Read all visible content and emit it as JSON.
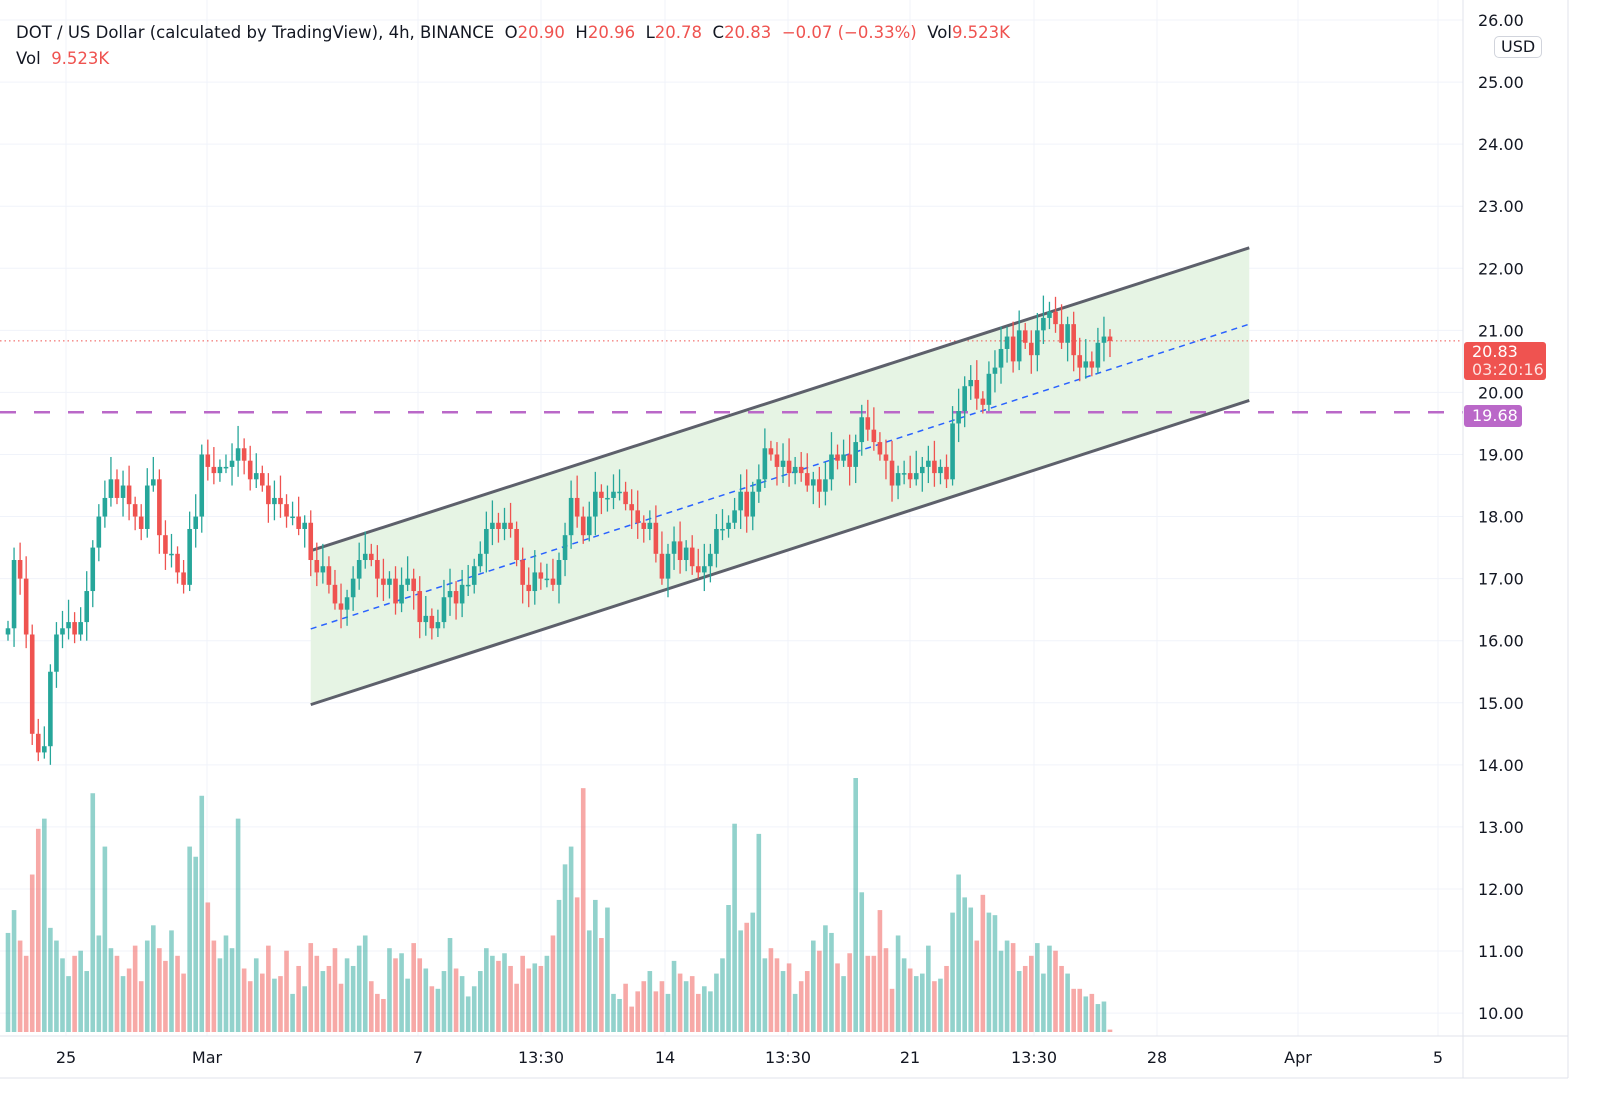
{
  "legend": {
    "symbol": "DOT / US Dollar (calculated by TradingView), 4h, BINANCE",
    "o_label": "O",
    "o": "20.90",
    "h_label": "H",
    "h": "20.96",
    "l_label": "L",
    "l": "20.78",
    "c_label": "C",
    "c": "20.83",
    "change": "−0.07 (−0.33%)",
    "vol_label": "Vol",
    "vol": "9.523K",
    "vol_row_label": "Vol",
    "vol_row_value": "9.523K"
  },
  "currency_badge": "USD",
  "last_price": {
    "price": "20.83",
    "countdown": "03:20:16",
    "color": "#ef5350"
  },
  "hline": {
    "price": "19.68",
    "color": "#ba68c8"
  },
  "colors": {
    "up": "#26a69a",
    "down": "#ef5350",
    "channel_fill": "#e6f4e4",
    "channel_line": "#5d606b",
    "channel_mid": "#2962ff"
  },
  "chart_data": {
    "type": "candlestick",
    "interval": "4h",
    "y_ticks": [
      "26.00",
      "25.00",
      "24.00",
      "23.00",
      "22.00",
      "21.00",
      "20.00",
      "19.00",
      "18.00",
      "17.00",
      "16.00",
      "15.00",
      "14.00",
      "13.00",
      "12.00",
      "11.00",
      "10.00"
    ],
    "x_ticks": [
      "25",
      "Mar",
      "7",
      "13:30",
      "14",
      "13:30",
      "21",
      "13:30",
      "28",
      "Apr",
      "5"
    ],
    "ylim": [
      9.7,
      26.0
    ],
    "grid": true,
    "close": [
      16.2,
      17.3,
      17.0,
      16.1,
      14.5,
      14.2,
      14.3,
      15.5,
      16.1,
      16.2,
      16.3,
      16.1,
      16.3,
      16.8,
      17.5,
      18.0,
      18.3,
      18.6,
      18.3,
      18.5,
      18.2,
      18.0,
      17.8,
      18.5,
      18.6,
      17.7,
      17.4,
      17.4,
      17.1,
      16.9,
      17.8,
      18.0,
      19.0,
      18.8,
      18.7,
      18.8,
      18.8,
      18.9,
      19.1,
      18.9,
      18.6,
      18.7,
      18.5,
      18.2,
      18.3,
      18.2,
      18.0,
      18.0,
      17.8,
      17.9,
      17.3,
      17.1,
      17.2,
      16.9,
      16.6,
      16.5,
      16.7,
      17.0,
      17.3,
      17.4,
      17.3,
      17.0,
      16.9,
      17.0,
      16.6,
      16.9,
      17.0,
      16.8,
      16.3,
      16.4,
      16.2,
      16.3,
      16.7,
      16.8,
      16.6,
      16.9,
      16.9,
      17.2,
      17.4,
      17.8,
      17.9,
      17.8,
      17.9,
      17.8,
      17.3,
      16.9,
      16.8,
      17.1,
      17.0,
      17.0,
      16.9,
      17.3,
      17.7,
      18.3,
      18.0,
      17.7,
      18.0,
      18.4,
      18.3,
      18.3,
      18.4,
      18.4,
      18.2,
      18.1,
      17.9,
      17.8,
      17.9,
      17.4,
      17.0,
      17.4,
      17.6,
      17.3,
      17.5,
      17.2,
      17.1,
      17.2,
      17.4,
      17.8,
      17.8,
      17.9,
      18.1,
      18.4,
      18.0,
      18.4,
      18.6,
      19.1,
      19.0,
      18.8,
      18.9,
      18.7,
      18.8,
      18.7,
      18.5,
      18.6,
      18.4,
      18.6,
      19.0,
      18.9,
      19.0,
      18.8,
      19.2,
      19.6,
      19.4,
      19.2,
      19.0,
      18.9,
      18.5,
      18.7,
      18.7,
      18.6,
      18.7,
      18.8,
      18.9,
      18.7,
      18.8,
      18.6,
      19.5,
      19.7,
      20.1,
      20.2,
      19.9,
      19.8,
      20.3,
      20.4,
      20.7,
      20.9,
      20.5,
      21.0,
      20.8,
      20.6,
      21.0,
      21.2,
      21.3,
      21.1,
      20.8,
      21.1,
      20.6,
      20.4,
      20.5,
      20.4,
      20.8,
      20.9,
      20.83
    ],
    "volume_k": [
      390,
      480,
      360,
      300,
      620,
      800,
      840,
      410,
      360,
      290,
      220,
      300,
      320,
      240,
      940,
      380,
      730,
      330,
      300,
      220,
      250,
      340,
      200,
      360,
      420,
      330,
      280,
      400,
      300,
      230,
      730,
      690,
      930,
      510,
      360,
      290,
      380,
      330,
      840,
      250,
      200,
      290,
      230,
      340,
      210,
      220,
      320,
      150,
      260,
      180,
      350,
      300,
      240,
      260,
      330,
      190,
      290,
      260,
      340,
      380,
      200,
      150,
      130,
      330,
      290,
      310,
      210,
      350,
      290,
      250,
      180,
      170,
      240,
      370,
      250,
      220,
      140,
      180,
      240,
      330,
      300,
      280,
      310,
      260,
      190,
      300,
      250,
      270,
      260,
      300,
      380,
      520,
      660,
      730,
      530,
      960,
      400,
      520,
      370,
      490,
      150,
      130,
      190,
      100,
      160,
      200,
      240,
      160,
      200,
      150,
      280,
      230,
      200,
      220,
      150,
      180,
      160,
      230,
      290,
      500,
      820,
      400,
      430,
      470,
      780,
      290,
      330,
      290,
      240,
      270,
      150,
      200,
      240,
      360,
      320,
      420,
      390,
      270,
      220,
      310,
      1000,
      550,
      300,
      300,
      480,
      330,
      170,
      380,
      290,
      250,
      220,
      230,
      340,
      200,
      210,
      260,
      470,
      620,
      530,
      490,
      360,
      540,
      470,
      460,
      320,
      360,
      350,
      240,
      260,
      300,
      350,
      230,
      340,
      320,
      260,
      230,
      170,
      170,
      140,
      150,
      110,
      120,
      9.523
    ],
    "parallel_channel": {
      "start_bar": 50,
      "end_bar": 205,
      "upper": [
        17.45,
        22.33
      ],
      "middle": [
        16.19,
        21.1
      ],
      "lower": [
        14.97,
        19.87
      ]
    },
    "horizontal_line": 19.68,
    "last_close": 20.83
  }
}
